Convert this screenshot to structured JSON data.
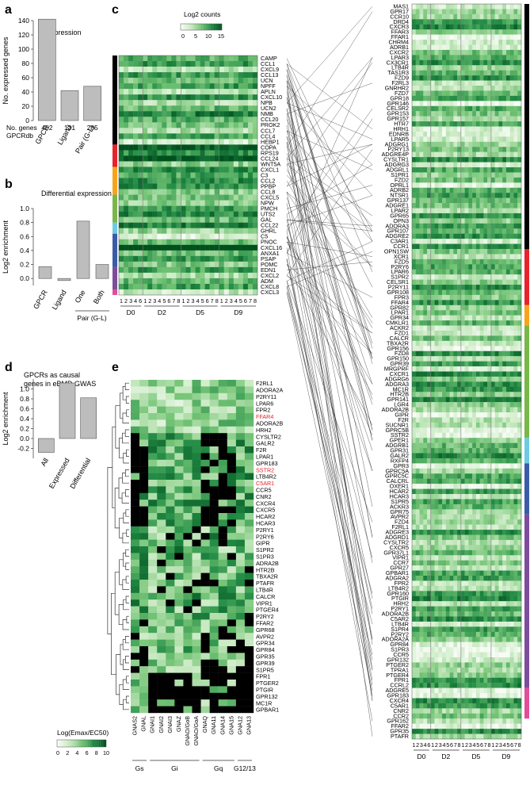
{
  "panels": {
    "a": "a",
    "b": "b",
    "c": "c",
    "d": "d",
    "e": "e"
  },
  "chart_data": [
    {
      "id": "a",
      "type": "bar",
      "title": "Expression",
      "ylabel": "No. expressed genes",
      "ylim": [
        0,
        140
      ],
      "yticks": [
        0,
        20,
        40,
        60,
        80,
        100,
        120,
        140
      ],
      "categories": [
        "GPCR",
        "Ligand",
        "Pair (G-L)"
      ],
      "values": [
        142,
        42,
        48
      ],
      "annotation_label": "No. genes\nGPCRdb",
      "annotation_values": [
        "402",
        "131",
        "285"
      ]
    },
    {
      "id": "b",
      "type": "bar",
      "title": "Differential expression",
      "ylabel": "Log2 enrichment",
      "ylim": [
        -0.1,
        1.0
      ],
      "yticks": [
        0.0,
        0.2,
        0.4,
        0.6,
        0.8,
        1.0
      ],
      "categories": [
        "GPCR",
        "Ligand",
        "One",
        "Both"
      ],
      "values": [
        0.17,
        -0.03,
        0.82,
        0.2
      ],
      "group_label": "Pair (G-L)"
    },
    {
      "id": "d",
      "type": "bar",
      "title": "GPCRs as causal\ngenes in eBMD GWAS",
      "ylabel": "Log2 enrichment",
      "ylim": [
        -0.4,
        1.2
      ],
      "yticks": [
        -0.2,
        0.0,
        0.2,
        0.4,
        0.6,
        0.8,
        1.0
      ],
      "categories": [
        "All",
        "Expressed",
        "Differential"
      ],
      "values": [
        -0.28,
        1.12,
        0.82
      ]
    },
    {
      "id": "c",
      "type": "heatmap",
      "legend_title": "Log2 counts",
      "legend_ticks": [
        "0",
        "5",
        "10",
        "15"
      ],
      "ligands": [
        "CAMP",
        "CCL1",
        "CXCL9",
        "CCL13",
        "UCN",
        "NPFF",
        "APLN",
        "CXCL10",
        "NPB",
        "UCN2",
        "NMB",
        "CCL20",
        "PROK2",
        "CCL7",
        "CCL4",
        "HEBP1",
        "COPA",
        "RPS19",
        "CCL24",
        "WNT5A",
        "CXCL1",
        "C3",
        "CCL2",
        "PPBP",
        "CCL8",
        "CXCL5",
        "NPW",
        "PMCH",
        "UTS2",
        "GAL",
        "CCL22",
        "GHRL",
        "C5",
        "PNOC",
        "CXCL16",
        "ANXA1",
        "PSAP",
        "POMC",
        "EDN1",
        "CXCL2",
        "ADM",
        "CXCL8",
        "CXCL3"
      ],
      "receptors": [
        "MAS1",
        "GPR17",
        "CCR10",
        "DRD4",
        "CXCR3",
        "FFAR3",
        "FFAR1",
        "CHRM4",
        "ADRB1",
        "CXCR2",
        "LPAR3",
        "CX3CR1",
        "LTB4R",
        "TAS1R3",
        "FZD9",
        "F2RL3",
        "GNRHR2",
        "FZD7",
        "GPR18",
        "GPR146",
        "CELSR2",
        "GPR153",
        "GPR157",
        "HTR7",
        "HRH1",
        "EDNRB",
        "LPAR5",
        "ADGRG1",
        "P2RY13",
        "ADGRE4P",
        "CYSLTR1",
        "ADGRG3",
        "ADGRL1",
        "S1PR1",
        "FZD2",
        "OPRL1",
        "ADRB2",
        "NTSR1",
        "GPR137",
        "ADGRE1",
        "LPAR2",
        "GPR65",
        "OPN3",
        "ADORA3",
        "GPR107",
        "ADGRE2",
        "C3AR1",
        "CCR1",
        "OPN1SW",
        "XCR1",
        "FZD5",
        "P2RY6",
        "LPAR6",
        "S1PR2",
        "CELSR1",
        "P2RY11",
        "GPR108",
        "FPR3",
        "FFAR4",
        "GPR82",
        "LPAR1",
        "GPR34",
        "CMKLR1",
        "ACKR2",
        "FZD1",
        "CALCR",
        "TBXA2R",
        "GPR156",
        "FZD8",
        "GPR150",
        "GPR39",
        "MRGPRF",
        "CXCR1",
        "ADGRG6",
        "ADGRA3",
        "MC1R",
        "HTR2B",
        "GPR141",
        "LGR4",
        "ADORA2B",
        "GIPR",
        "F2R",
        "SUCNR1",
        "GPRC5B",
        "SSTR2",
        "GPER1",
        "ADGRB1",
        "GPR31",
        "GALR2",
        "RXFP4",
        "GPR3",
        "GPRC5A",
        "GPRC5C",
        "CALCRL",
        "OXER1",
        "HCAR2",
        "HCAR3",
        "S1PR5",
        "ACKR3",
        "GPR75",
        "AVPR2",
        "FZD4",
        "F2RL1",
        "ADGRE3",
        "ADGRD1",
        "CYSLTR2",
        "CXCR5",
        "GPR37L1",
        "VIPR1",
        "CCR7",
        "GPR27",
        "GPBAR1",
        "ADGRA2",
        "FPR2",
        "LTB4R2",
        "GPR160",
        "PTGIR",
        "HRH2",
        "P2RY1",
        "ADORA2B",
        "C5AR2",
        "LTB4R",
        "S1PR4",
        "P2RY2",
        "ADORA2A",
        "GPR84",
        "S1PR3",
        "CCR5",
        "GPR132",
        "PTGER2",
        "TPRA1",
        "PTGER4",
        "FPR1",
        "CCRL2",
        "ADGRE5",
        "GPR183",
        "CXCR4",
        "C5AR1",
        "CNR2",
        "CCR2",
        "GPR162",
        "FFAR2",
        "GPR35",
        "PTAFR"
      ],
      "time_groups": [
        "D0",
        "D2",
        "D5",
        "D9"
      ],
      "left_columns": [
        "1",
        "2",
        "3",
        "4",
        "6",
        "1",
        "2",
        "3",
        "4",
        "5",
        "6",
        "7",
        "8",
        "1",
        "2",
        "3",
        "4",
        "5",
        "6",
        "7",
        "8",
        "1",
        "2",
        "3",
        "4",
        "5",
        "6",
        "7",
        "8"
      ],
      "right_columns": [
        "1",
        "2",
        "3",
        "4",
        "6",
        "1",
        "2",
        "3",
        "4",
        "5",
        "6",
        "7",
        "8",
        "1",
        "2",
        "3",
        "4",
        "5",
        "6",
        "7",
        "8",
        "1",
        "2",
        "3",
        "4",
        "5",
        "6",
        "7",
        "8"
      ],
      "ligand_color_groups": [
        "#000000",
        "#e8222d",
        "#f6a51a",
        "#7ab648",
        "#6ccbe0",
        "#3a5ba8",
        "#7d4d9c",
        "#e24d9b"
      ],
      "receptor_color_groups": [
        "#000000",
        "#e8222d",
        "#f6a51a",
        "#7ab648",
        "#6ccbe0",
        "#3a5ba8",
        "#7d4d9c",
        "#e24d9b"
      ]
    },
    {
      "id": "e",
      "type": "heatmap",
      "legend_title": "Log(Emax/EC50)",
      "legend_ticks": [
        "0",
        "2",
        "4",
        "6",
        "8",
        "10"
      ],
      "columns": [
        "GNAS2",
        "GNAL",
        "GNAI1",
        "GNAI2",
        "GNAI3",
        "GNAZ",
        "GNAO/GoB",
        "GNAO/GoA",
        "GNAQ",
        "GNA11",
        "GNA14",
        "GNA15",
        "GNA12",
        "GNA13"
      ],
      "column_groups": [
        {
          "label": "Gs",
          "span": 2
        },
        {
          "label": "Gi",
          "span": 6
        },
        {
          "label": "Gq",
          "span": 4
        },
        {
          "label": "G12/13",
          "span": 2
        }
      ],
      "rows": [
        "F2RL1",
        "ADORA2A",
        "P2RY11",
        "LPAR6",
        "FPR2",
        "FFAR4",
        "ADORA2B",
        "HRH2",
        "CYSLTR2",
        "GALR2",
        "F2R",
        "LPAR1",
        "GPR183",
        "SSTR2",
        "LTB4R2",
        "C5AR1",
        "CCR5",
        "CNR2",
        "CXCR4",
        "CXCR5",
        "HCAR2",
        "HCAR3",
        "P2RY1",
        "P2RY6",
        "GIPR",
        "S1PR2",
        "S1PR3",
        "ADRA2B",
        "HTR2B",
        "TBXA2R",
        "PTAFR",
        "LTB4R",
        "CALCR",
        "VIPR1",
        "PTGER4",
        "P2RY2",
        "FFAR2",
        "GPR68",
        "AVPR2",
        "GPR34",
        "GPR84",
        "GPR35",
        "GPR39",
        "S1PR5",
        "FPR1",
        "PTGER2",
        "PTGIR",
        "GPR132",
        "MC1R",
        "GPBAR1"
      ],
      "highlighted_rows": [
        "FFAR4",
        "SSTR2",
        "C5AR1"
      ],
      "highlight_color": "#e8222d"
    }
  ]
}
